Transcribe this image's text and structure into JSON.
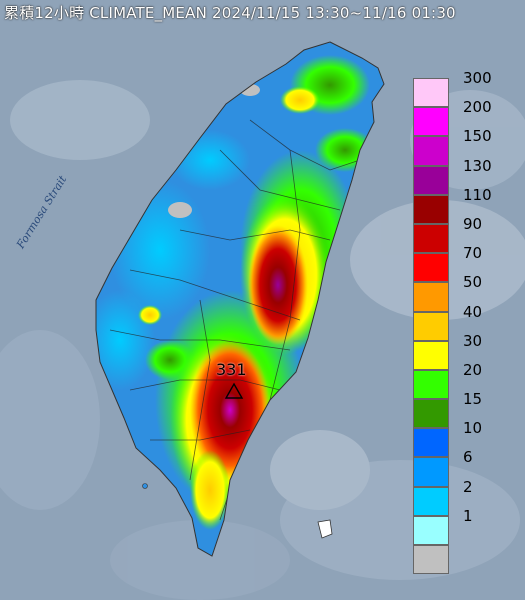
{
  "title": "累積12小時 CLIMATE_MEAN 2024/11/15 13:30~11/16 01:30",
  "strait_label": "Formosa Strait",
  "peak_label": "331",
  "colors": {
    "sea": "#8fa3b8",
    "land_base": "#2f8fe0"
  },
  "legend": [
    {
      "label": "300",
      "color": "#ffc8f8"
    },
    {
      "label": "200",
      "color": "#ff00ff"
    },
    {
      "label": "150",
      "color": "#cc00cc"
    },
    {
      "label": "130",
      "color": "#990099"
    },
    {
      "label": "110",
      "color": "#990000"
    },
    {
      "label": "90",
      "color": "#cc0000"
    },
    {
      "label": "70",
      "color": "#ff0000"
    },
    {
      "label": "50",
      "color": "#ff9900"
    },
    {
      "label": "40",
      "color": "#ffcc00"
    },
    {
      "label": "30",
      "color": "#ffff00"
    },
    {
      "label": "20",
      "color": "#33ff00"
    },
    {
      "label": "15",
      "color": "#339900"
    },
    {
      "label": "10",
      "color": "#0066ff"
    },
    {
      "label": "6",
      "color": "#0099ff"
    },
    {
      "label": "2",
      "color": "#00ccff"
    },
    {
      "label": "1",
      "color": "#99ffff"
    },
    {
      "label": "",
      "color": "#c0c0c0"
    }
  ]
}
